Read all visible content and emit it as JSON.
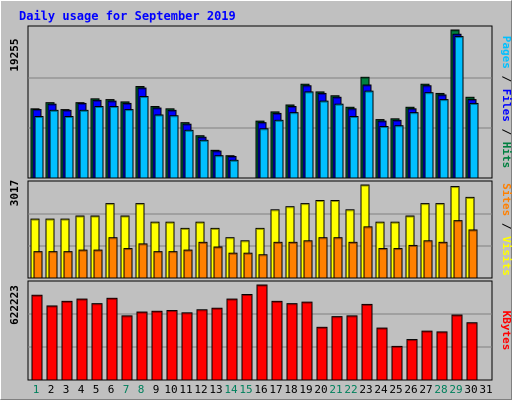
{
  "chart_data": [
    {
      "type": "bar",
      "title": "Daily usage for September 2019",
      "panel": "top",
      "ymax_label": "19255",
      "legend": [
        "Pages",
        "Files",
        "Hits"
      ],
      "categories": [
        "1",
        "2",
        "3",
        "4",
        "5",
        "6",
        "7",
        "8",
        "9",
        "10",
        "11",
        "12",
        "13",
        "14",
        "15",
        "16",
        "17",
        "18",
        "19",
        "20",
        "21",
        "22",
        "23",
        "24",
        "25",
        "26",
        "27",
        "28",
        "29",
        "30",
        "31"
      ],
      "series": [
        {
          "name": "Hits",
          "values": [
            9000,
            9800,
            8900,
            9800,
            10300,
            10200,
            9900,
            11900,
            9300,
            9000,
            7200,
            5500,
            3600,
            2900,
            null,
            7400,
            8600,
            9500,
            12200,
            11200,
            10700,
            9200,
            13100,
            7600,
            7700,
            9200,
            12200,
            11000,
            19255,
            10500,
            null
          ]
        },
        {
          "name": "Files",
          "values": [
            8900,
            9600,
            8800,
            9700,
            10100,
            10000,
            9700,
            11700,
            9100,
            8800,
            7000,
            5300,
            3500,
            2800,
            null,
            7200,
            8400,
            9300,
            12000,
            11000,
            10500,
            9000,
            12100,
            7400,
            7500,
            9000,
            12000,
            10800,
            18700,
            10200,
            null
          ]
        },
        {
          "name": "Pages",
          "values": [
            8000,
            8800,
            8000,
            8800,
            9300,
            9300,
            8900,
            10600,
            8200,
            8100,
            6200,
            4900,
            2900,
            2300,
            null,
            6400,
            7500,
            8500,
            11200,
            10000,
            9600,
            8000,
            11300,
            6700,
            6800,
            8500,
            11100,
            10200,
            18400,
            9700,
            null
          ]
        }
      ],
      "colors": {
        "Hits": "#008040",
        "Files": "#0000ff",
        "Pages": "#00c0ff",
        "bg": "#c0c0c0"
      }
    },
    {
      "type": "bar",
      "panel": "middle",
      "ymax_label": "3017",
      "legend": [
        "Sites",
        "Visits"
      ],
      "categories": [
        "1",
        "2",
        "3",
        "4",
        "5",
        "6",
        "7",
        "8",
        "9",
        "10",
        "11",
        "12",
        "13",
        "14",
        "15",
        "16",
        "17",
        "18",
        "19",
        "20",
        "21",
        "22",
        "23",
        "24",
        "25",
        "26",
        "27",
        "28",
        "29",
        "30",
        "31"
      ],
      "series": [
        {
          "name": "Visits",
          "values": [
            1900,
            1900,
            1900,
            2000,
            2000,
            2400,
            2000,
            2400,
            1800,
            1800,
            1600,
            1800,
            1600,
            1300,
            1200,
            1600,
            2200,
            2300,
            2400,
            2500,
            2500,
            2200,
            3000,
            1800,
            1800,
            2000,
            2400,
            2400,
            2950,
            2600,
            null
          ]
        },
        {
          "name": "Sites",
          "values": [
            850,
            850,
            850,
            900,
            900,
            1300,
            950,
            1100,
            850,
            850,
            900,
            1150,
            1000,
            800,
            800,
            750,
            1150,
            1150,
            1200,
            1300,
            1300,
            1150,
            1650,
            950,
            950,
            1050,
            1200,
            1150,
            1850,
            1550,
            null
          ]
        }
      ],
      "colors": {
        "Visits": "#ffff00",
        "Sites": "#ff8000"
      }
    },
    {
      "type": "bar",
      "panel": "bottom",
      "ymax_label": "622223",
      "legend": [
        "KBytes"
      ],
      "categories": [
        "1",
        "2",
        "3",
        "4",
        "5",
        "6",
        "7",
        "8",
        "9",
        "10",
        "11",
        "12",
        "13",
        "14",
        "15",
        "16",
        "17",
        "18",
        "19",
        "20",
        "21",
        "22",
        "23",
        "24",
        "25",
        "26",
        "27",
        "28",
        "29",
        "30",
        "31"
      ],
      "series": [
        {
          "name": "KBytes",
          "values": [
            555000,
            485000,
            515000,
            530000,
            500000,
            535000,
            420000,
            445000,
            450000,
            455000,
            440000,
            460000,
            470000,
            530000,
            560000,
            622223,
            515000,
            500000,
            510000,
            345000,
            415000,
            420000,
            495000,
            340000,
            220000,
            265000,
            320000,
            315000,
            425000,
            375000,
            null
          ]
        }
      ],
      "colors": {
        "KBytes": "#ff0000"
      }
    }
  ],
  "x_labels": {
    "days": [
      "1",
      "2",
      "3",
      "4",
      "5",
      "6",
      "7",
      "8",
      "9",
      "10",
      "11",
      "12",
      "13",
      "14",
      "15",
      "16",
      "17",
      "18",
      "19",
      "20",
      "21",
      "22",
      "23",
      "24",
      "25",
      "26",
      "27",
      "28",
      "29",
      "30",
      "31"
    ],
    "weekend_days": [
      1,
      7,
      8,
      14,
      15,
      21,
      22,
      28,
      29
    ]
  },
  "side_labels": {
    "top": [
      {
        "text": "Pages",
        "color": "#00c0ff"
      },
      {
        "text": " / ",
        "color": "#000000"
      },
      {
        "text": "Files",
        "color": "#0000ff"
      },
      {
        "text": " / ",
        "color": "#000000"
      },
      {
        "text": "Hits",
        "color": "#008040"
      }
    ],
    "middle": [
      {
        "text": "Sites",
        "color": "#ff8000"
      },
      {
        "text": " / ",
        "color": "#000000"
      },
      {
        "text": "Visits",
        "color": "#ffff00"
      }
    ],
    "bottom": [
      {
        "text": "KBytes",
        "color": "#ff0000"
      }
    ]
  },
  "colors": {
    "weekday_label": "#000000",
    "weekend_label": "#00805c",
    "title": "#0000ff",
    "plot_bg": "#c0c0c0",
    "frame_bg": "#c0c0c0"
  }
}
